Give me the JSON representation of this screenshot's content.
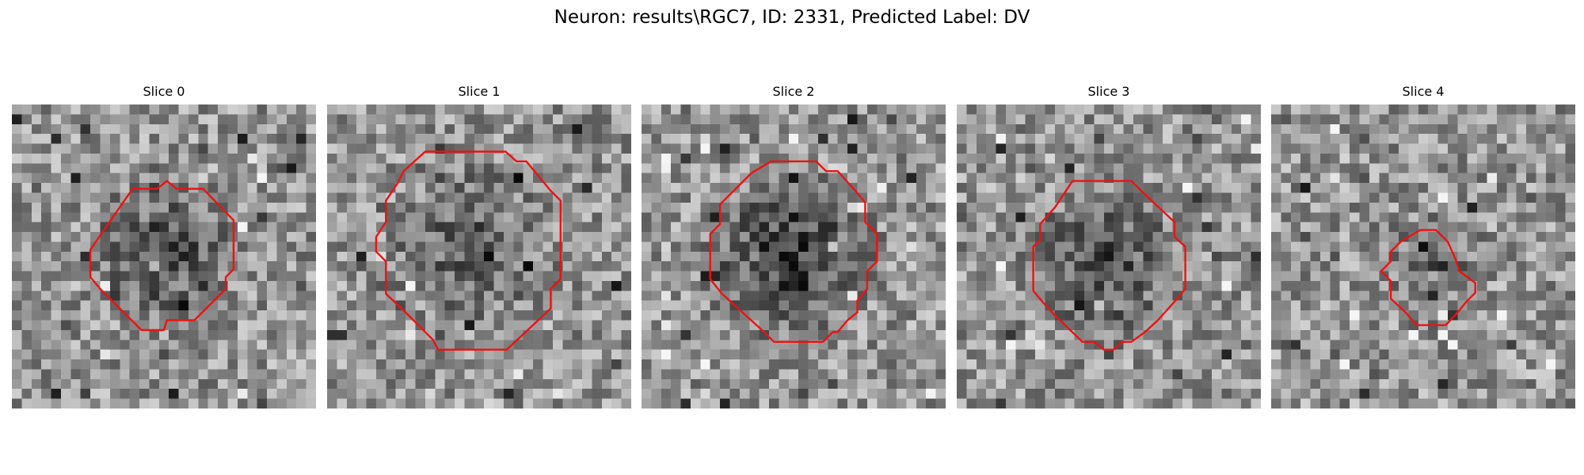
{
  "figure": {
    "title": "Neuron: results\\RGC7, ID: 2331, Predicted Label: DV"
  },
  "colors": {
    "contour": "#ee1111",
    "background": "#ffffff"
  },
  "panels": [
    {
      "title": "Slice 0"
    },
    {
      "title": "Slice 1"
    },
    {
      "title": "Slice 2"
    },
    {
      "title": "Slice 3"
    },
    {
      "title": "Slice 4"
    }
  ]
}
